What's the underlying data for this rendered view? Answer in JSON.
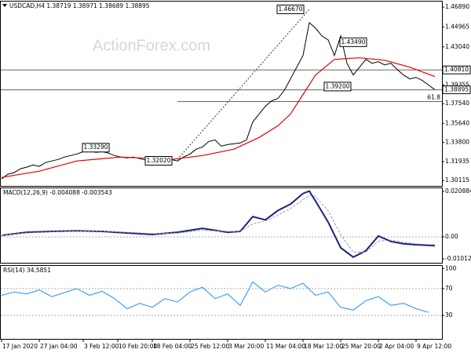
{
  "chart_data": [
    {
      "type": "line",
      "title": "USDCAD,H4  1.38719 1.38971 1.38689 1.38895",
      "watermark": "ActionForex.com",
      "ylim": [
        1.2959,
        1.475
      ],
      "xlim": [
        0,
        70
      ],
      "yticks": [
        {
          "value": 1.4689,
          "label": "1.46890"
        },
        1.44965,
        {
          "value": 1.4304,
          "label": "1.43040"
        },
        1.39355,
        {
          "value": 1.3754,
          "label": "1.37540"
        },
        {
          "value": 1.3564,
          "label": "1.35640"
        },
        {
          "value": 1.338,
          "label": "1.33800"
        },
        1.31935,
        1.30115
      ],
      "series": [
        {
          "color": "#000000",
          "width": 1,
          "x": [
            0,
            1,
            2,
            3,
            4,
            5,
            6,
            7,
            8,
            9,
            10,
            11,
            12,
            13,
            14,
            15,
            16,
            17,
            18,
            19,
            20,
            21,
            22,
            23,
            24,
            25,
            26,
            27,
            28,
            29,
            30,
            31,
            32,
            33,
            34,
            35,
            36,
            37,
            38,
            39,
            40,
            41,
            42,
            43,
            44,
            45,
            46,
            47,
            48,
            49,
            50,
            51,
            52,
            53,
            54,
            55,
            56,
            57,
            58,
            59,
            60,
            61,
            62,
            63,
            64,
            65,
            66,
            67,
            68,
            69
          ],
          "values": [
            1.3026,
            1.3072,
            1.3087,
            1.3125,
            1.314,
            1.3162,
            1.3147,
            1.3185,
            1.32,
            1.3215,
            1.3238,
            1.3253,
            1.3268,
            1.3291,
            1.3299,
            1.3283,
            1.3291,
            1.3276,
            1.3253,
            1.3238,
            1.323,
            1.3238,
            1.3223,
            1.3208,
            1.3185,
            1.32,
            1.3208,
            1.3215,
            1.32,
            1.3238,
            1.3268,
            1.3314,
            1.3336,
            1.3389,
            1.3404,
            1.3344,
            1.3359,
            1.3367,
            1.3374,
            1.3404,
            1.3578,
            1.3654,
            1.3729,
            1.3782,
            1.3805,
            1.3881,
            1.3994,
            1.4107,
            1.4221,
            1.4538,
            1.4485,
            1.441,
            1.4372,
            1.4221,
            1.441,
            1.4145,
            1.4032,
            1.4107,
            1.4183,
            1.4145,
            1.416,
            1.413,
            1.4145,
            1.4085,
            1.4032,
            1.3994,
            1.4009,
            1.3979,
            1.3934,
            1.389
          ]
        },
        {
          "color": "#e00000",
          "width": 1.2,
          "x": [
            0,
            6,
            12,
            19,
            27,
            32,
            37,
            41,
            44,
            46,
            48,
            50,
            53,
            57,
            61,
            65,
            69
          ],
          "values": [
            1.3041,
            1.3102,
            1.32,
            1.3238,
            1.3215,
            1.3253,
            1.3314,
            1.3427,
            1.354,
            1.3654,
            1.3843,
            1.4032,
            1.4183,
            1.4198,
            1.4175,
            1.4107,
            1.4017
          ]
        }
      ],
      "hlines": [
        {
          "value": 1.4081,
          "label": "1.40810"
        },
        {
          "value": 1.38895,
          "label": "1.38895"
        }
      ],
      "fib": {
        "value": 1.3775,
        "label": "61.8",
        "x": 28
      },
      "trendline": {
        "x": [
          28,
          49
        ],
        "values": [
          1.3215,
          1.4667
        ]
      },
      "annotations": [
        {
          "x": 46,
          "value": 1.4667,
          "label": "1.46670"
        },
        {
          "x": 56,
          "value": 1.4349,
          "label": "1.43490"
        },
        {
          "x": 53.5,
          "value": 1.392,
          "label": "1.39200"
        },
        {
          "x": 15,
          "value": 1.3329,
          "label": "1.33290"
        },
        {
          "x": 25,
          "value": 1.3202,
          "label": "1.32020"
        }
      ]
    },
    {
      "type": "line",
      "title": "MACD(12,26,9) -0.004088 -0.003543",
      "ylim": [
        -0.0119,
        0.02267
      ],
      "xlim": [
        0,
        70
      ],
      "yticks": [
        0.020884,
        {
          "value": 0,
          "label": "0.00"
        },
        -0.010121
      ],
      "levels": [
        0
      ],
      "series": [
        {
          "color": "#1a237e",
          "width": 2,
          "x": [
            0,
            4,
            8,
            12,
            16,
            20,
            24,
            28,
            32,
            36,
            38,
            40,
            42,
            44,
            46,
            48,
            49,
            50,
            52,
            54,
            56,
            58,
            60,
            62,
            64,
            66,
            68,
            69
          ],
          "values": [
            0.0007,
            0.0021,
            0.0025,
            0.0028,
            0.0025,
            0.0018,
            0.0011,
            0.0021,
            0.0039,
            0.0021,
            0.0025,
            0.0093,
            0.0078,
            0.0121,
            0.015,
            0.0199,
            0.021,
            0.0164,
            0.0068,
            -0.005,
            -0.0093,
            -0.0064,
            0.0004,
            -0.0021,
            -0.0032,
            -0.0036,
            -0.0039,
            -0.0041
          ]
        },
        {
          "color": "#999999",
          "width": 1,
          "style": "dashed",
          "x": [
            0,
            4,
            8,
            12,
            16,
            20,
            24,
            28,
            32,
            36,
            38,
            40,
            42,
            44,
            46,
            48,
            49,
            50,
            52,
            54,
            56,
            58,
            60,
            62,
            64,
            66,
            68,
            69
          ],
          "values": [
            0.0008,
            0.0018,
            0.0023,
            0.0026,
            0.0026,
            0.0021,
            0.0015,
            0.0017,
            0.003,
            0.0025,
            0.0024,
            0.006,
            0.0072,
            0.01,
            0.013,
            0.017,
            0.019,
            0.0185,
            0.012,
            0.001,
            -0.007,
            -0.007,
            -0.002,
            -0.0015,
            -0.0025,
            -0.0032,
            -0.0035,
            -0.0035
          ]
        }
      ]
    },
    {
      "type": "line",
      "title": "RSI(14) 34.5851",
      "ylim": [
        -5,
        105
      ],
      "xlim": [
        0,
        70
      ],
      "yticks": [
        100,
        70,
        30
      ],
      "levels": [
        70,
        30
      ],
      "xticks": [
        {
          "value": 0,
          "label": "17 Jan 2020"
        },
        {
          "value": 6,
          "label": "27 Jan 04:00"
        },
        {
          "value": 13,
          "label": "3 Feb 12:00"
        },
        {
          "value": 18.5,
          "label": "10 Feb 20:00"
        },
        {
          "value": 24,
          "label": "18 Feb 04:00"
        },
        {
          "value": 30,
          "label": "25 Feb 12:00"
        },
        {
          "value": 36,
          "label": "3 Mar 20:00"
        },
        {
          "value": 42,
          "label": "11 Mar 04:00"
        },
        {
          "value": 48,
          "label": "18 Mar 12:00"
        },
        {
          "value": 54,
          "label": "25 Mar 20:00"
        },
        {
          "value": 60,
          "label": "2 Apr 04:00"
        },
        {
          "value": 66,
          "label": "9 Apr 12:00"
        }
      ],
      "series": [
        {
          "color": "#1e90ff",
          "width": 1,
          "x": [
            0,
            2,
            4,
            6,
            8,
            10,
            12,
            14,
            16,
            18,
            20,
            22,
            24,
            26,
            28,
            30,
            32,
            34,
            36,
            38,
            40,
            42,
            44,
            46,
            48,
            50,
            52,
            54,
            56,
            58,
            60,
            62,
            64,
            66,
            68
          ],
          "values": [
            60,
            65,
            62,
            68,
            58,
            64,
            70,
            60,
            66,
            55,
            40,
            48,
            42,
            55,
            50,
            65,
            72,
            55,
            62,
            45,
            80,
            65,
            75,
            70,
            78,
            60,
            65,
            42,
            38,
            52,
            58,
            45,
            48,
            40,
            34.59
          ]
        }
      ]
    }
  ]
}
